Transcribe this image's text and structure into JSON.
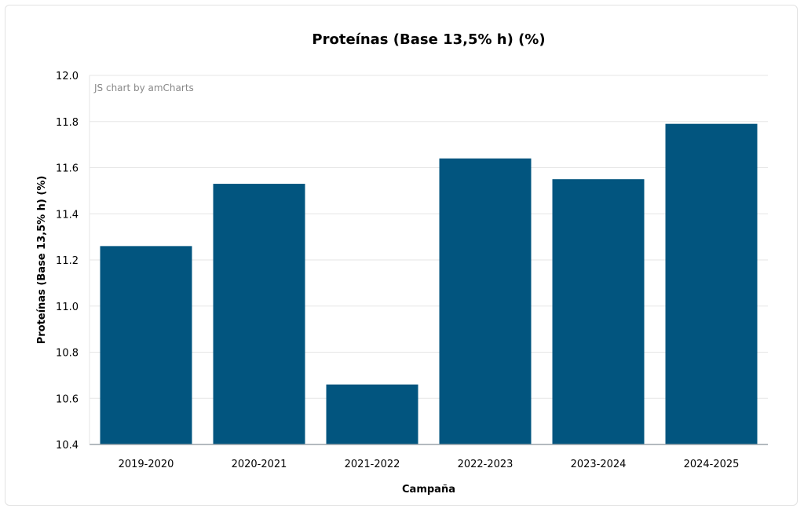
{
  "credit": "JS chart by amCharts",
  "colors": {
    "bar": "#02557f",
    "grid": "#e6e6e6",
    "axis": "#9aa4aa"
  },
  "chart_data": {
    "type": "bar",
    "title": "Proteínas (Base 13,5% h) (%)",
    "xlabel": "Campaña",
    "ylabel": "Proteínas (Base 13,5% h) (%)",
    "categories": [
      "2019-2020",
      "2020-2021",
      "2021-2022",
      "2022-2023",
      "2023-2024",
      "2024-2025"
    ],
    "values": [
      11.26,
      11.53,
      10.66,
      11.64,
      11.55,
      11.79
    ],
    "ylim": [
      10.4,
      12.0
    ],
    "yticks": [
      "10.4",
      "10.6",
      "10.8",
      "11.0",
      "11.2",
      "11.4",
      "11.6",
      "11.8",
      "12.0"
    ],
    "grid": true,
    "legend": "none"
  }
}
